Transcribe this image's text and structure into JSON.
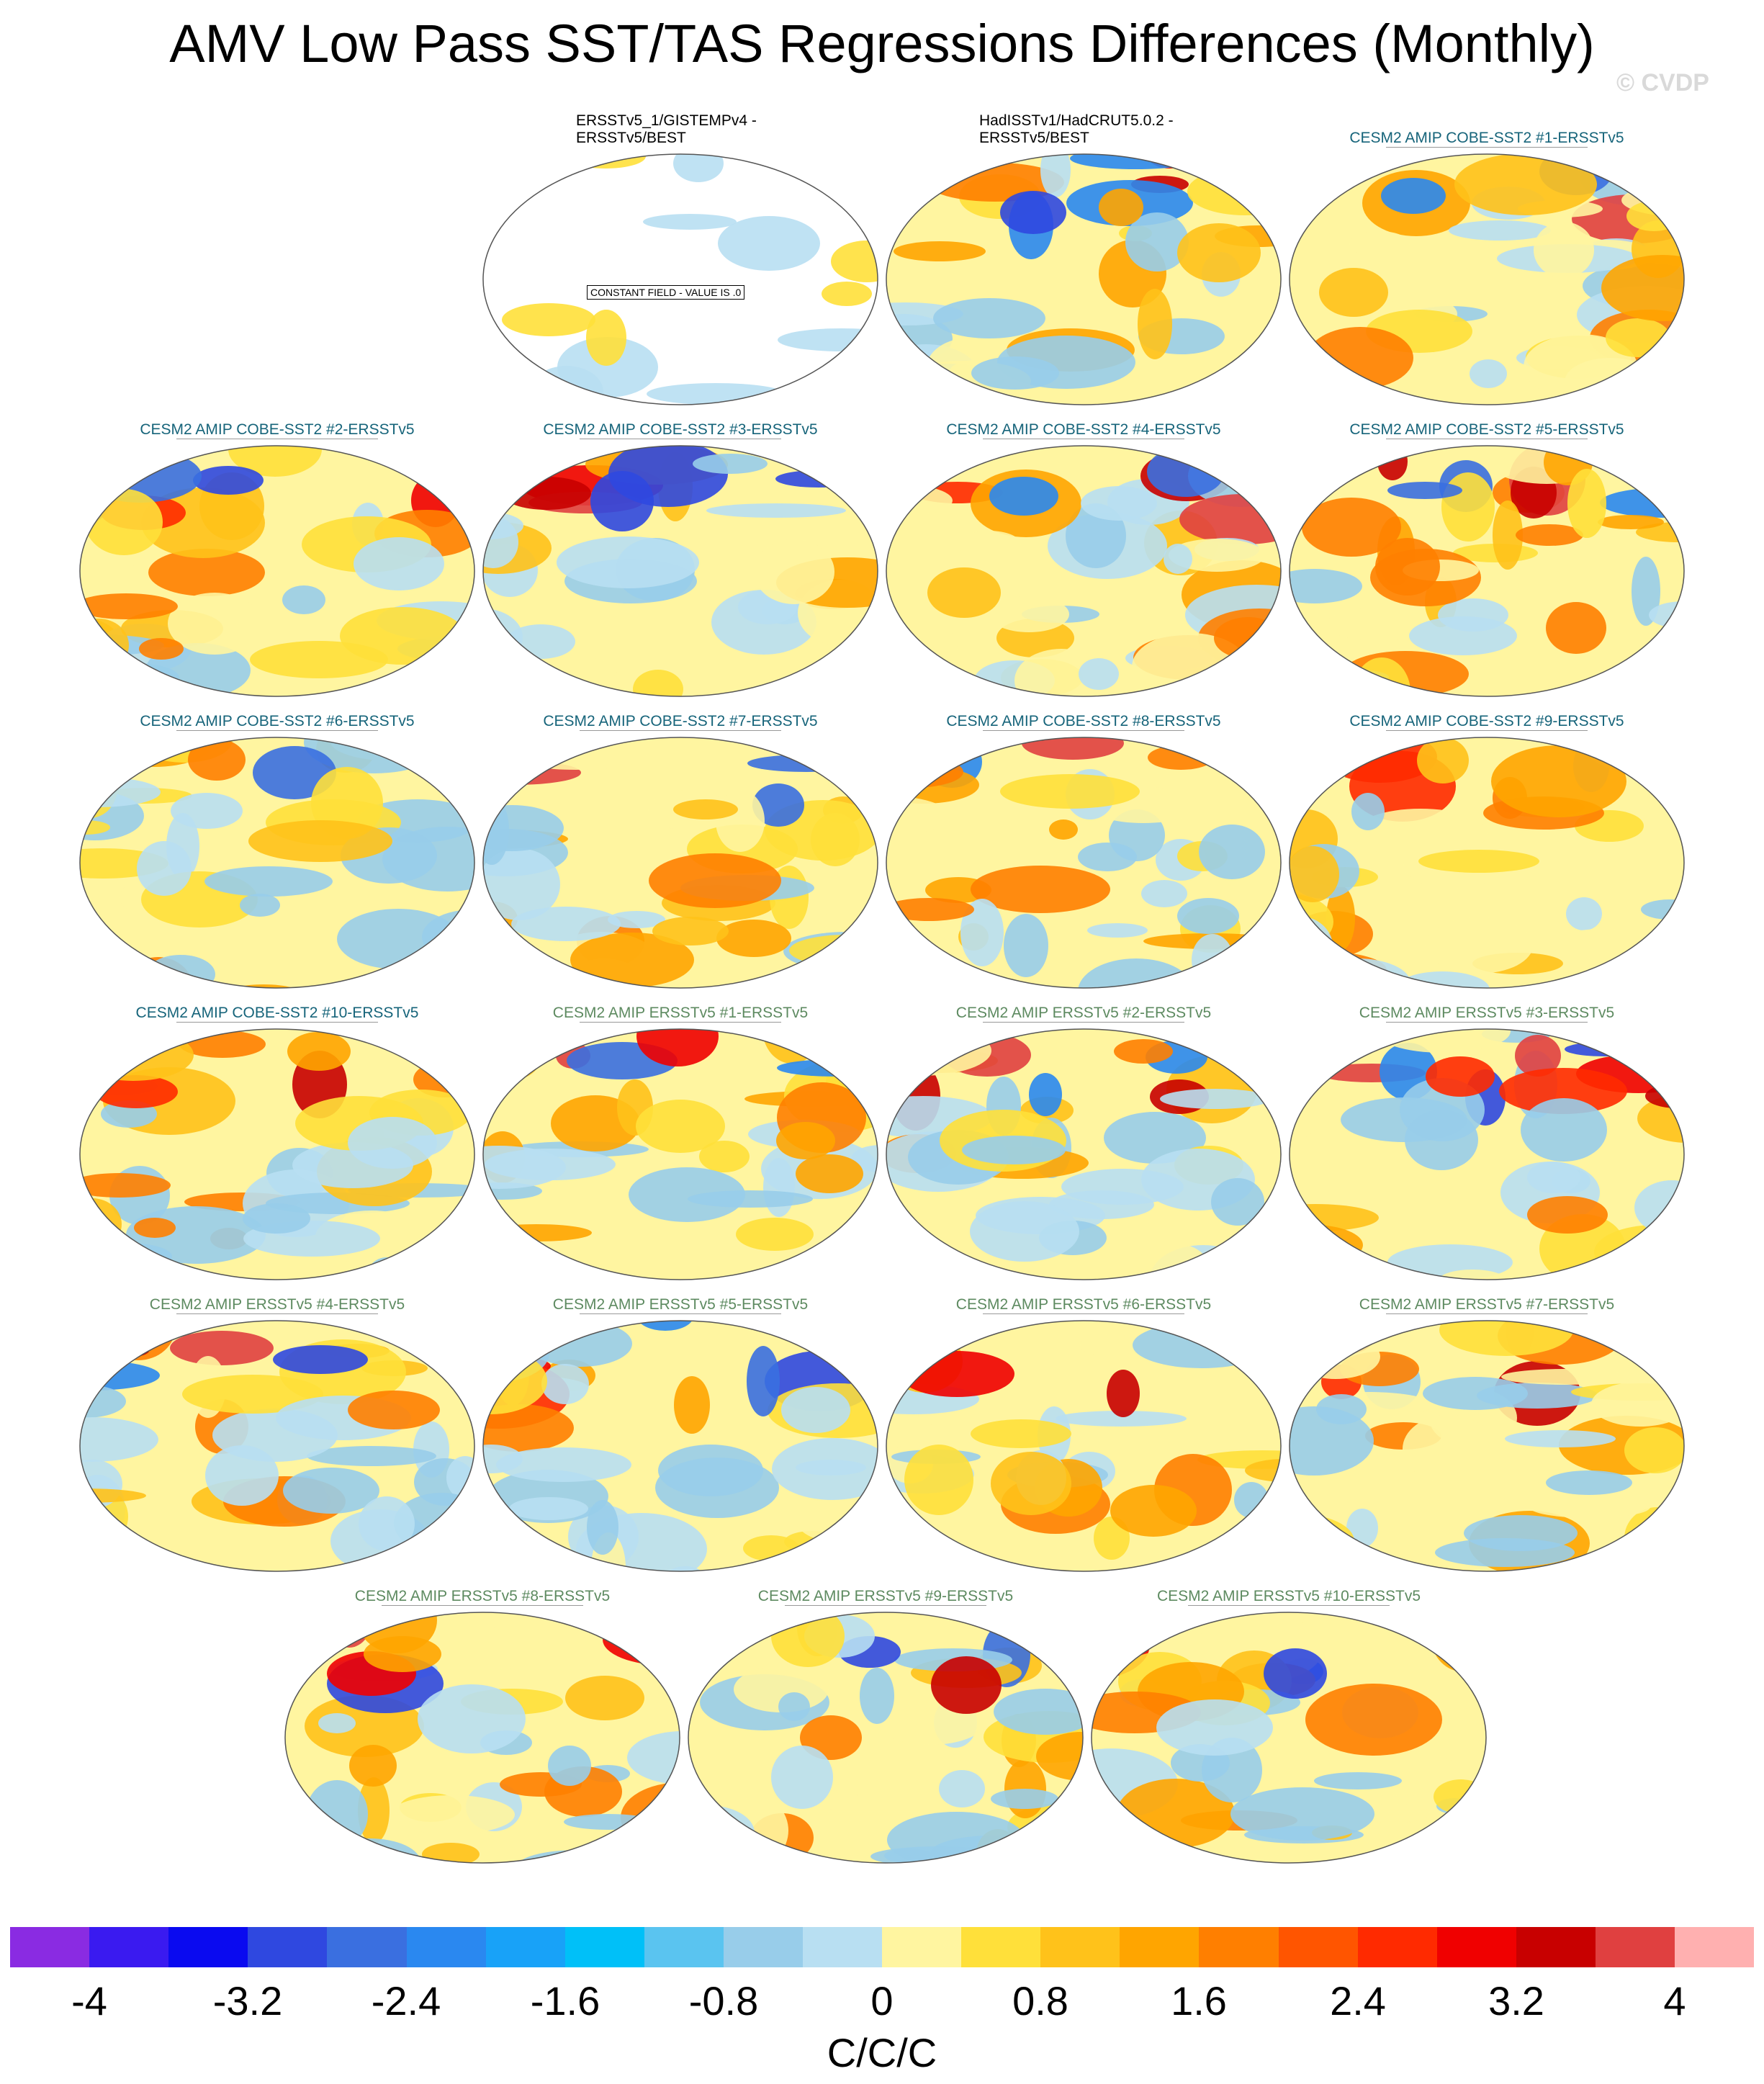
{
  "title": "AMV Low Pass SST/TAS Regressions Differences (Monthly)",
  "watermark": "© CVDP",
  "panels": [
    {
      "title": "ERSSTv5_1/GISTEMPv4 -\nERSSTv5/BEST",
      "group": "obs",
      "constant_field": "CONSTANT FIELD - VALUE IS .0"
    },
    {
      "title": "HadISSTv1/HadCRUT5.0.2 -\nERSSTv5/BEST",
      "group": "obs"
    },
    {
      "title": "CESM2 AMIP COBE-SST2 #1-ERSSTv5",
      "group": "cobe"
    },
    {
      "title": "CESM2 AMIP COBE-SST2 #2-ERSSTv5",
      "group": "cobe"
    },
    {
      "title": "CESM2 AMIP COBE-SST2 #3-ERSSTv5",
      "group": "cobe"
    },
    {
      "title": "CESM2 AMIP COBE-SST2 #4-ERSSTv5",
      "group": "cobe"
    },
    {
      "title": "CESM2 AMIP COBE-SST2 #5-ERSSTv5",
      "group": "cobe"
    },
    {
      "title": "CESM2 AMIP COBE-SST2 #6-ERSSTv5",
      "group": "cobe"
    },
    {
      "title": "CESM2 AMIP COBE-SST2 #7-ERSSTv5",
      "group": "cobe"
    },
    {
      "title": "CESM2 AMIP COBE-SST2 #8-ERSSTv5",
      "group": "cobe"
    },
    {
      "title": "CESM2 AMIP COBE-SST2 #9-ERSSTv5",
      "group": "cobe"
    },
    {
      "title": "CESM2 AMIP COBE-SST2 #10-ERSSTv5",
      "group": "cobe"
    },
    {
      "title": "CESM2 AMIP ERSSTv5 #1-ERSSTv5",
      "group": "ersst"
    },
    {
      "title": "CESM2 AMIP ERSSTv5 #2-ERSSTv5",
      "group": "ersst"
    },
    {
      "title": "CESM2 AMIP ERSSTv5 #3-ERSSTv5",
      "group": "ersst"
    },
    {
      "title": "CESM2 AMIP ERSSTv5 #4-ERSSTv5",
      "group": "ersst"
    },
    {
      "title": "CESM2 AMIP ERSSTv5 #5-ERSSTv5",
      "group": "ersst"
    },
    {
      "title": "CESM2 AMIP ERSSTv5 #6-ERSSTv5",
      "group": "ersst"
    },
    {
      "title": "CESM2 AMIP ERSSTv5 #7-ERSSTv5",
      "group": "ersst"
    },
    {
      "title": "CESM2 AMIP ERSSTv5 #8-ERSSTv5",
      "group": "ersst"
    },
    {
      "title": "CESM2 AMIP ERSSTv5 #9-ERSSTv5",
      "group": "ersst"
    },
    {
      "title": "CESM2 AMIP ERSSTv5 #10-ERSSTv5",
      "group": "ersst"
    }
  ],
  "colorbar": {
    "colors": [
      "#8a2be2",
      "#3a1af0",
      "#0a0af0",
      "#2f48e0",
      "#3a6fe0",
      "#2a88f0",
      "#18a2f8",
      "#00c0f8",
      "#5ac4f0",
      "#98cdea",
      "#b8dff2",
      "#fff5a0",
      "#ffe03a",
      "#ffc21a",
      "#ffa500",
      "#ff7f00",
      "#ff5500",
      "#ff2a00",
      "#f00000",
      "#c80000",
      "#e04040",
      "#ffb0b0"
    ],
    "ticks": [
      "-4",
      "-3.2",
      "-2.4",
      "-1.6",
      "-0.8",
      "0",
      "0.8",
      "1.6",
      "2.4",
      "3.2",
      "4"
    ],
    "units": "C/C/C"
  }
}
